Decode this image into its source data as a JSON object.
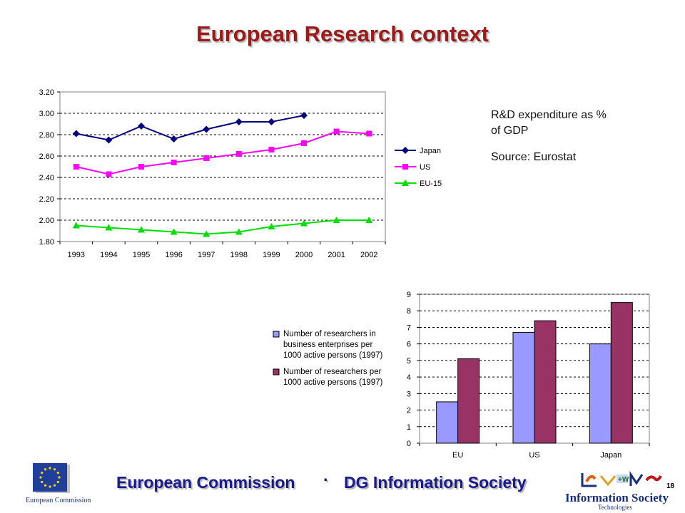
{
  "slide": {
    "title": "European Research context",
    "note_line1": "R&D expenditure as %",
    "note_line2": "of GDP",
    "source": "Source: Eurostat",
    "footer_left": "European Commission",
    "footer_dot": "·",
    "footer_right": "DG Information Society",
    "page_number": "18",
    "eu_logo_caption": "European Commission",
    "ist_logo_title": "Information Society",
    "ist_logo_sub": "Technologies",
    "colors": {
      "title": "#9b1b1b",
      "footer": "#1a1a8c",
      "logo": "#1a2f7a"
    }
  },
  "chart_data": [
    {
      "type": "line",
      "x": [
        "1993",
        "1994",
        "1995",
        "1996",
        "1997",
        "1998",
        "1999",
        "2000",
        "2001",
        "2002"
      ],
      "ylim": [
        1.8,
        3.2
      ],
      "yticks": [
        "1.80",
        "2.00",
        "2.20",
        "2.40",
        "2.60",
        "2.80",
        "3.00",
        "3.20"
      ],
      "grid": "horizontal dashed",
      "legend_position": "right",
      "series": [
        {
          "name": "Japan",
          "color": "#000080",
          "marker": "diamond",
          "values": [
            2.81,
            2.75,
            2.88,
            2.76,
            2.85,
            2.92,
            2.92,
            2.98,
            null,
            null
          ]
        },
        {
          "name": "US",
          "color": "#ff00ff",
          "marker": "square",
          "values": [
            2.5,
            2.43,
            2.5,
            2.54,
            2.58,
            2.62,
            2.66,
            2.72,
            2.83,
            2.81
          ]
        },
        {
          "name": "EU-15",
          "color": "#00dd00",
          "marker": "triangle",
          "values": [
            1.95,
            1.93,
            1.91,
            1.89,
            1.87,
            1.89,
            1.94,
            1.97,
            2.0,
            2.0
          ]
        }
      ]
    },
    {
      "type": "bar",
      "categories": [
        "EU",
        "US",
        "Japan"
      ],
      "ylim": [
        0,
        9
      ],
      "yticks": [
        "0",
        "1",
        "2",
        "3",
        "4",
        "5",
        "6",
        "7",
        "8",
        "9"
      ],
      "grid": "horizontal dashed",
      "legend_position": "left",
      "series": [
        {
          "name_lines": [
            "Number of researchers in",
            "business enterprises per",
            "1000 active persons (1997)"
          ],
          "color": "#9999ff",
          "values": [
            2.5,
            6.7,
            6.0
          ]
        },
        {
          "name_lines": [
            "Number of researchers per",
            "1000 active persons (1997)"
          ],
          "color": "#993366",
          "values": [
            5.1,
            7.4,
            8.5
          ]
        }
      ]
    }
  ]
}
